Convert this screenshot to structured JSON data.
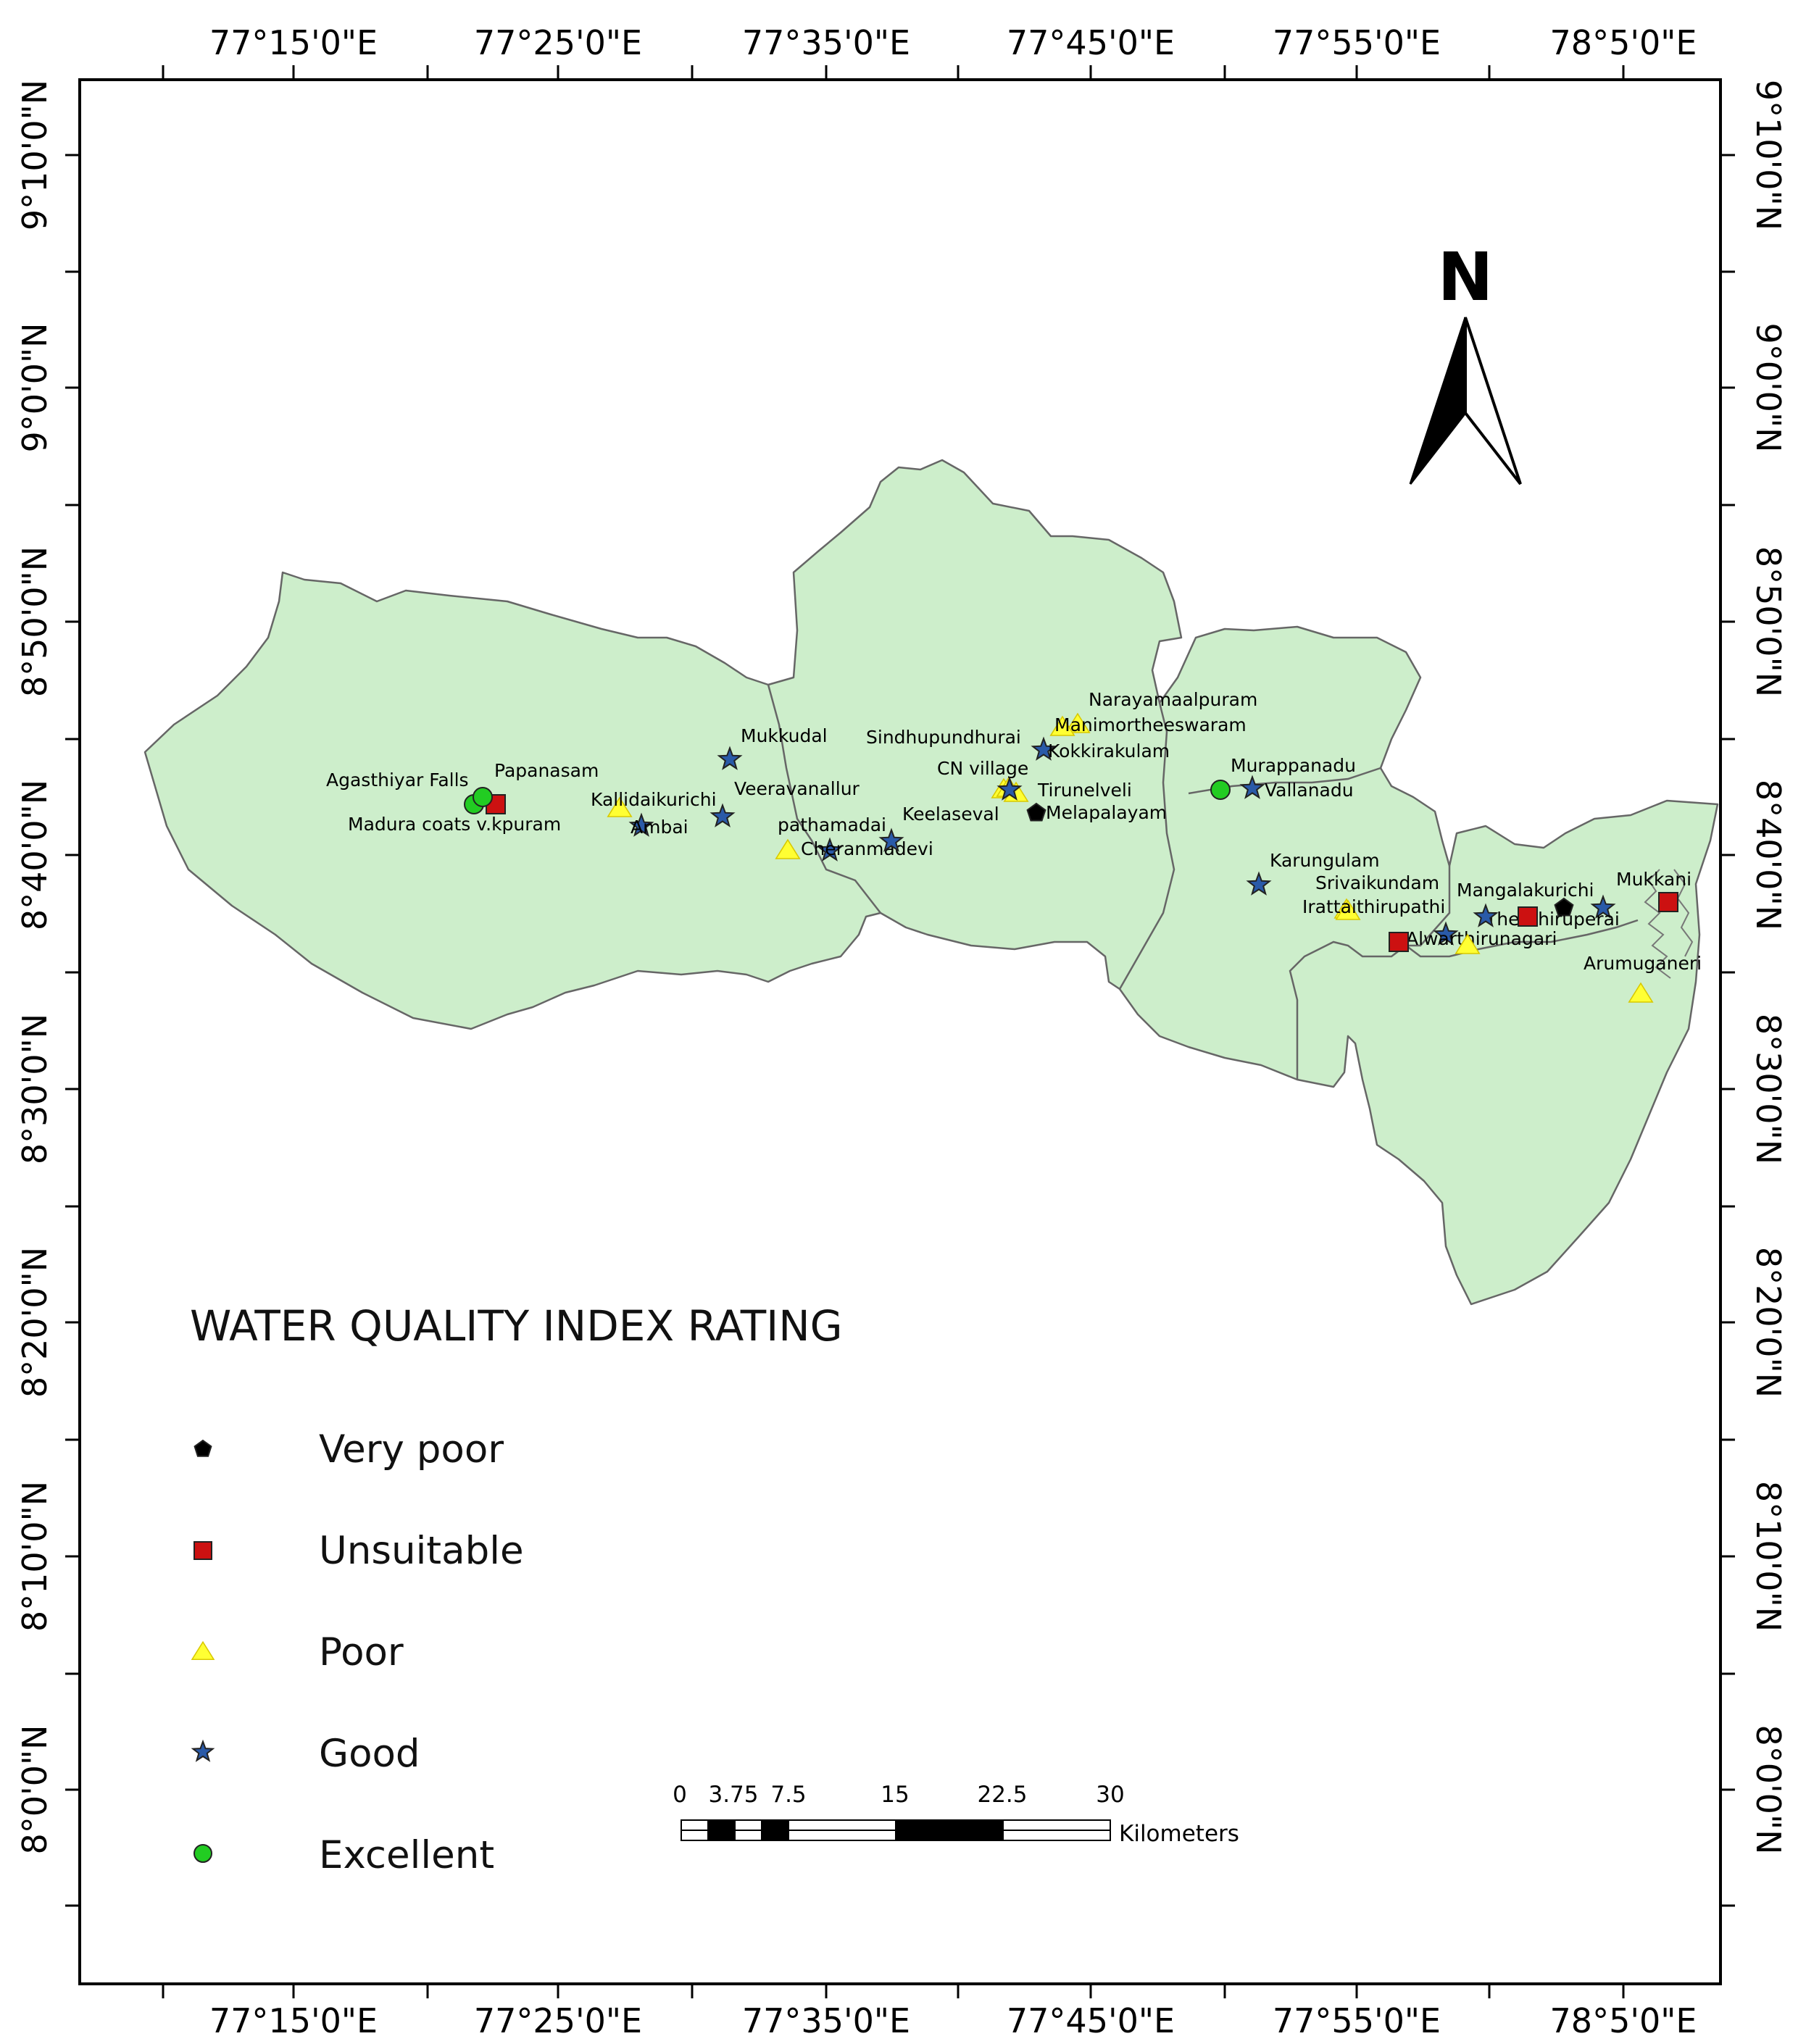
{
  "map": {
    "top_lon_labels": [
      "77°15'0\"E",
      "77°25'0\"E",
      "77°35'0\"E",
      "77°45'0\"E",
      "77°55'0\"E",
      "78°5'0\"E"
    ],
    "bottom_lon_labels": [
      "77°15'0\"E",
      "77°25'0\"E",
      "77°35'0\"E",
      "77°45'0\"E",
      "77°55'0\"E",
      "78°5'0\"E"
    ],
    "left_lat_labels": [
      "9°10'0\"N",
      "9°0'0\"N",
      "8°50'0\"N",
      "8°40'0\"N",
      "8°30'0\"N",
      "8°20'0\"N",
      "8°10'0\"N",
      "8°0'0\"N"
    ],
    "right_lat_labels": [
      "9°10'0\"N",
      "9°0'0\"N",
      "8°50'0\"N",
      "8°40'0\"N",
      "8°30'0\"N",
      "8°20'0\"N",
      "8°10'0\"N",
      "8°0'0\"N"
    ],
    "north_label": "N",
    "land_color": "#cdeecb",
    "sites": [
      {
        "name": "Agasthiyar Falls",
        "rating": "excellent"
      },
      {
        "name": "Papanasam",
        "rating": "unsuitable"
      },
      {
        "name": "Madura coats v.kpuram",
        "rating": "excellent"
      },
      {
        "name": "Kallidaikurichi",
        "rating": "poor"
      },
      {
        "name": "Ambai",
        "rating": "good"
      },
      {
        "name": "Mukkudal",
        "rating": "good"
      },
      {
        "name": "Veeravanallur",
        "rating": "good"
      },
      {
        "name": "pathamadai",
        "rating": "poor"
      },
      {
        "name": "Cheranmadevi",
        "rating": "good"
      },
      {
        "name": "Keelaseval",
        "rating": "good"
      },
      {
        "name": "Sindhupundhurai",
        "rating": "poor"
      },
      {
        "name": "CN village",
        "rating": "poor"
      },
      {
        "name": "Narayamaalpuram",
        "rating": "poor"
      },
      {
        "name": "Manimortheeswaram",
        "rating": "poor"
      },
      {
        "name": "Kokkirakulam",
        "rating": "good"
      },
      {
        "name": "Tirunelveli",
        "rating": "poor"
      },
      {
        "name": "Melapalayam",
        "rating": "very_poor"
      },
      {
        "name": "Murappanadu",
        "rating": "excellent"
      },
      {
        "name": "Vallanadu",
        "rating": "good"
      },
      {
        "name": "Karungulam",
        "rating": "good"
      },
      {
        "name": "Srivaikundam",
        "rating": "poor"
      },
      {
        "name": "Irattaithirupathi",
        "rating": "poor"
      },
      {
        "name": "Mangalakurichi",
        "rating": "very_poor"
      },
      {
        "name": "Thenthiruperai",
        "rating": "good"
      },
      {
        "name": "Alwarthirunagari",
        "rating": "good"
      },
      {
        "name": "Mukkani",
        "rating": "unsuitable"
      },
      {
        "name": "Arumuganeri",
        "rating": "poor"
      }
    ],
    "extra_markers": [
      {
        "rating": "unsuitable"
      },
      {
        "rating": "good"
      },
      {
        "rating": "poor"
      },
      {
        "rating": "unsuitable"
      },
      {
        "rating": "good"
      }
    ]
  },
  "legend": {
    "title": "WATER QUALITY INDEX RATING",
    "items": [
      {
        "rating": "very_poor",
        "label": "Very poor"
      },
      {
        "rating": "unsuitable",
        "label": "Unsuitable"
      },
      {
        "rating": "poor",
        "label": "Poor"
      },
      {
        "rating": "good",
        "label": "Good"
      },
      {
        "rating": "excellent",
        "label": "Excellent"
      }
    ]
  },
  "scale_bar": {
    "labels": [
      "0",
      "3.75",
      "7.5",
      "15",
      "22.5",
      "30"
    ],
    "unit": "Kilometers"
  },
  "rating_styles": {
    "very_poor": {
      "shape": "pentagon",
      "color": "#000000"
    },
    "unsuitable": {
      "shape": "square",
      "color": "#cc1111"
    },
    "poor": {
      "shape": "triangle",
      "color": "#ffff33"
    },
    "good": {
      "shape": "star",
      "color": "#2a5aa8"
    },
    "excellent": {
      "shape": "circle",
      "color": "#22cc22"
    }
  }
}
